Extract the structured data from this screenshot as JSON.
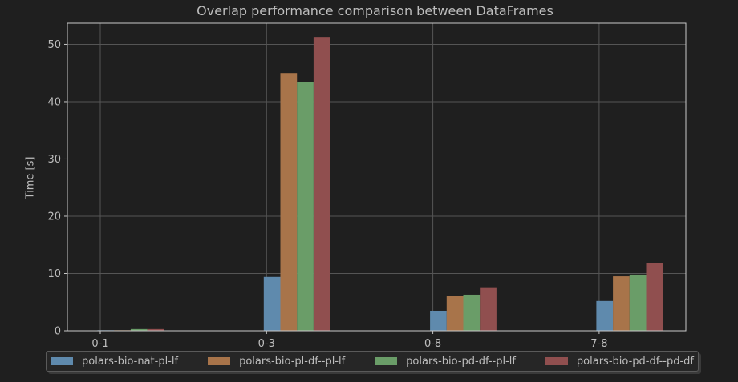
{
  "chart_data": {
    "type": "bar",
    "title": "Overlap performance comparison between DataFrames",
    "xlabel": "",
    "ylabel": "Time [s]",
    "categories": [
      "0-1",
      "0-3",
      "0-8",
      "7-8"
    ],
    "ylim": [
      0,
      53.7
    ],
    "yticks": [
      0,
      10,
      20,
      30,
      40,
      50
    ],
    "grid": true,
    "legend": "bottom-center",
    "series": [
      {
        "name": "polars-bio-nat-pl-lf",
        "color": "#5f8aad",
        "values": [
          0.1,
          9.4,
          3.5,
          5.2
        ]
      },
      {
        "name": "polars-bio-pl-df--pl-lf",
        "color": "#a8744a",
        "values": [
          0.1,
          45.0,
          6.1,
          9.5
        ]
      },
      {
        "name": "polars-bio-pd-df--pl-lf",
        "color": "#6a9d68",
        "values": [
          0.3,
          43.4,
          6.3,
          9.8
        ]
      },
      {
        "name": "polars-bio-pd-df--pd-df",
        "color": "#904f4f",
        "values": [
          0.3,
          51.3,
          7.6,
          11.8
        ]
      }
    ]
  }
}
